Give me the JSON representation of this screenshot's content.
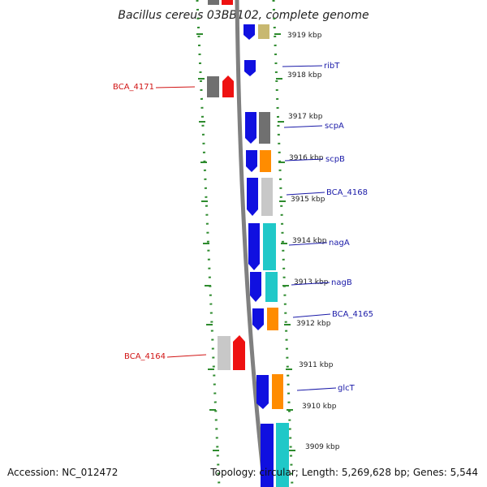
{
  "title": "Bacillus cereus 03BB102, complete genome",
  "footer": {
    "accession": "Accession: NC_012472",
    "topology": "Topology: circular; Length: 5,269,628 bp; Genes: 5,544"
  },
  "colors": {
    "forward": "#1010e0",
    "grey_dark": "#707070",
    "grey_light": "#c8c8c8",
    "orange": "#ff8c00",
    "cyan": "#20c8c8",
    "khaki": "#c8b870",
    "red": "#ee1111",
    "label_blue": "#1a1aa8",
    "label_red": "#d11414",
    "backbone": "#808080",
    "ticks": "#2e8b2e"
  },
  "ticks": [
    "3919 kbp",
    "3918 kbp",
    "3917 kbp",
    "3916 kbp",
    "3915 kbp",
    "3914 kbp",
    "3913 kbp",
    "3912 kbp",
    "3911 kbp",
    "3910 kbp",
    "3909 kbp"
  ],
  "gene_labels": {
    "ribT": "ribT",
    "scpA": "scpA",
    "scpB": "scpB",
    "BCA_4168": "BCA_4168",
    "nagA": "nagA",
    "nagB": "nagB",
    "BCA_4165": "BCA_4165",
    "glcT": "glcT",
    "BCA_4171": "BCA_4171",
    "BCA_4164": "BCA_4164"
  }
}
